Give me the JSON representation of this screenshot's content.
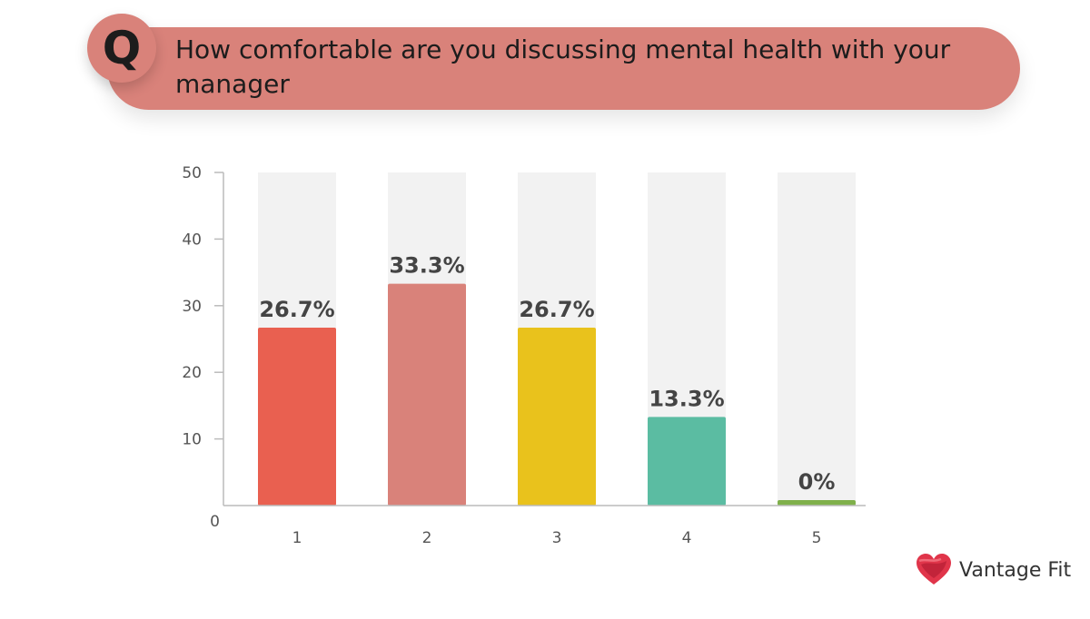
{
  "question": {
    "badge": "Q",
    "text": "How comfortable are you discussing mental health with your manager"
  },
  "brand": {
    "name": "Vantage Fit",
    "logo_icon": "heart-logo-icon"
  },
  "chart_data": {
    "type": "bar",
    "title": "",
    "xlabel": "",
    "ylabel": "",
    "categories": [
      "1",
      "2",
      "3",
      "4",
      "5"
    ],
    "values": [
      26.7,
      33.3,
      26.7,
      13.3,
      0
    ],
    "value_labels": [
      "26.7%",
      "33.3%",
      "26.7%",
      "13.3%",
      "0%"
    ],
    "bar_colors": [
      "#e96050",
      "#d9827a",
      "#e9c21c",
      "#5bbca2",
      "#7fb04a"
    ],
    "background_bar_color": "#f2f2f2",
    "yticks": [
      "0",
      "10",
      "20",
      "30",
      "40",
      "50"
    ],
    "ylim": [
      0,
      50
    ],
    "grid": false,
    "legend": "none"
  }
}
